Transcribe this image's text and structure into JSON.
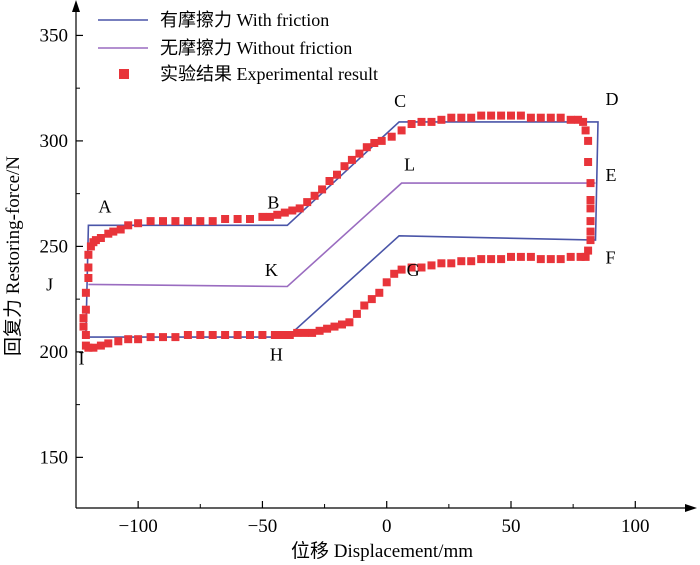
{
  "chart_data": {
    "type": "line",
    "xlabel": "位移 Displacement/mm",
    "ylabel": "回复力 Restoring-force/N",
    "xlim": [
      -125,
      120
    ],
    "ylim": [
      126,
      363
    ],
    "x_ticks": [
      -100,
      -50,
      0,
      50,
      100
    ],
    "x_tick_labels": [
      "−100",
      "−50",
      "0",
      "50",
      "100"
    ],
    "y_ticks": [
      150,
      200,
      250,
      300,
      350
    ],
    "y_tick_labels": [
      "150",
      "200",
      "250",
      "300",
      "350"
    ],
    "grid": false,
    "legend_position": "top-left",
    "colors": {
      "with_friction": "#4a55a8",
      "without_friction": "#9a6cc0",
      "experimental": "#e8343a"
    },
    "series": [
      {
        "name": "有摩擦力 With friction",
        "style": "line",
        "x": [
          -121,
          -120,
          -40,
          5,
          85,
          84,
          5,
          -40,
          -120,
          -121
        ],
        "y": [
          208,
          260,
          260,
          309,
          309,
          253,
          255,
          207,
          207,
          208
        ]
      },
      {
        "name": "无摩擦力 Without friction",
        "style": "line",
        "x": [
          -120,
          -40,
          6,
          84
        ],
        "y": [
          232,
          231,
          280,
          280
        ]
      },
      {
        "name": "实验结果 Experimental result",
        "style": "scatter",
        "x": [
          -121,
          -121,
          -120,
          -120,
          -120,
          -119,
          -118,
          -117,
          -115,
          -112,
          -110,
          -107,
          -104,
          -100,
          -95,
          -90,
          -85,
          -80,
          -75,
          -70,
          -65,
          -60,
          -55,
          -50,
          -47,
          -44,
          -41,
          -38,
          -35,
          -32,
          -29,
          -26,
          -23,
          -20,
          -17,
          -14,
          -11,
          -8,
          -5,
          -2,
          2,
          6,
          10,
          14,
          18,
          22,
          26,
          30,
          34,
          38,
          42,
          46,
          50,
          54,
          58,
          62,
          66,
          70,
          74,
          77,
          79,
          80,
          81,
          81,
          82,
          82,
          82,
          82,
          82,
          82,
          81,
          80,
          78,
          74,
          70,
          66,
          62,
          58,
          54,
          50,
          46,
          42,
          38,
          34,
          30,
          26,
          22,
          18,
          14,
          10,
          6,
          3,
          0,
          -3,
          -6,
          -9,
          -12,
          -15,
          -18,
          -21,
          -24,
          -27,
          -30,
          -33,
          -36,
          -39,
          -42,
          -45,
          -50,
          -55,
          -60,
          -65,
          -70,
          -75,
          -80,
          -85,
          -90,
          -95,
          -100,
          -104,
          -108,
          -112,
          -115,
          -118,
          -120,
          -121,
          -121,
          -122,
          -122
        ],
        "y": [
          220,
          228,
          235,
          240,
          246,
          250,
          252,
          253,
          254,
          256,
          257,
          258,
          260,
          261,
          262,
          262,
          262,
          262,
          262,
          262,
          263,
          263,
          263,
          264,
          264,
          265,
          266,
          267,
          268,
          271,
          274,
          277,
          281,
          284,
          288,
          291,
          294,
          297,
          299,
          300,
          302,
          305,
          308,
          309,
          309,
          310,
          311,
          311,
          311,
          312,
          312,
          312,
          312,
          312,
          311,
          311,
          311,
          311,
          310,
          310,
          309,
          305,
          300,
          290,
          280,
          272,
          268,
          262,
          257,
          253,
          248,
          245,
          245,
          245,
          244,
          244,
          244,
          245,
          245,
          245,
          244,
          244,
          244,
          243,
          243,
          242,
          242,
          241,
          240,
          240,
          239,
          237,
          233,
          228,
          225,
          222,
          218,
          214,
          213,
          212,
          211,
          210,
          209,
          209,
          209,
          208,
          208,
          208,
          208,
          208,
          208,
          208,
          208,
          208,
          208,
          207,
          207,
          207,
          206,
          206,
          205,
          204,
          203,
          202,
          202,
          203,
          208,
          212,
          216
        ]
      }
    ],
    "annotations": [
      {
        "text": "A",
        "x": -116,
        "y": 266
      },
      {
        "text": "B",
        "x": -48,
        "y": 268
      },
      {
        "text": "C",
        "x": 3,
        "y": 316
      },
      {
        "text": "D",
        "x": 88,
        "y": 317
      },
      {
        "text": "E",
        "x": 88,
        "y": 281
      },
      {
        "text": "F",
        "x": 88,
        "y": 242
      },
      {
        "text": "G",
        "x": 8,
        "y": 236
      },
      {
        "text": "H",
        "x": -47,
        "y": 196
      },
      {
        "text": "I",
        "x": -124,
        "y": 194
      },
      {
        "text": "J",
        "x": -137,
        "y": 229
      },
      {
        "text": "K",
        "x": -49,
        "y": 236
      },
      {
        "text": "L",
        "x": 7,
        "y": 286
      }
    ]
  }
}
